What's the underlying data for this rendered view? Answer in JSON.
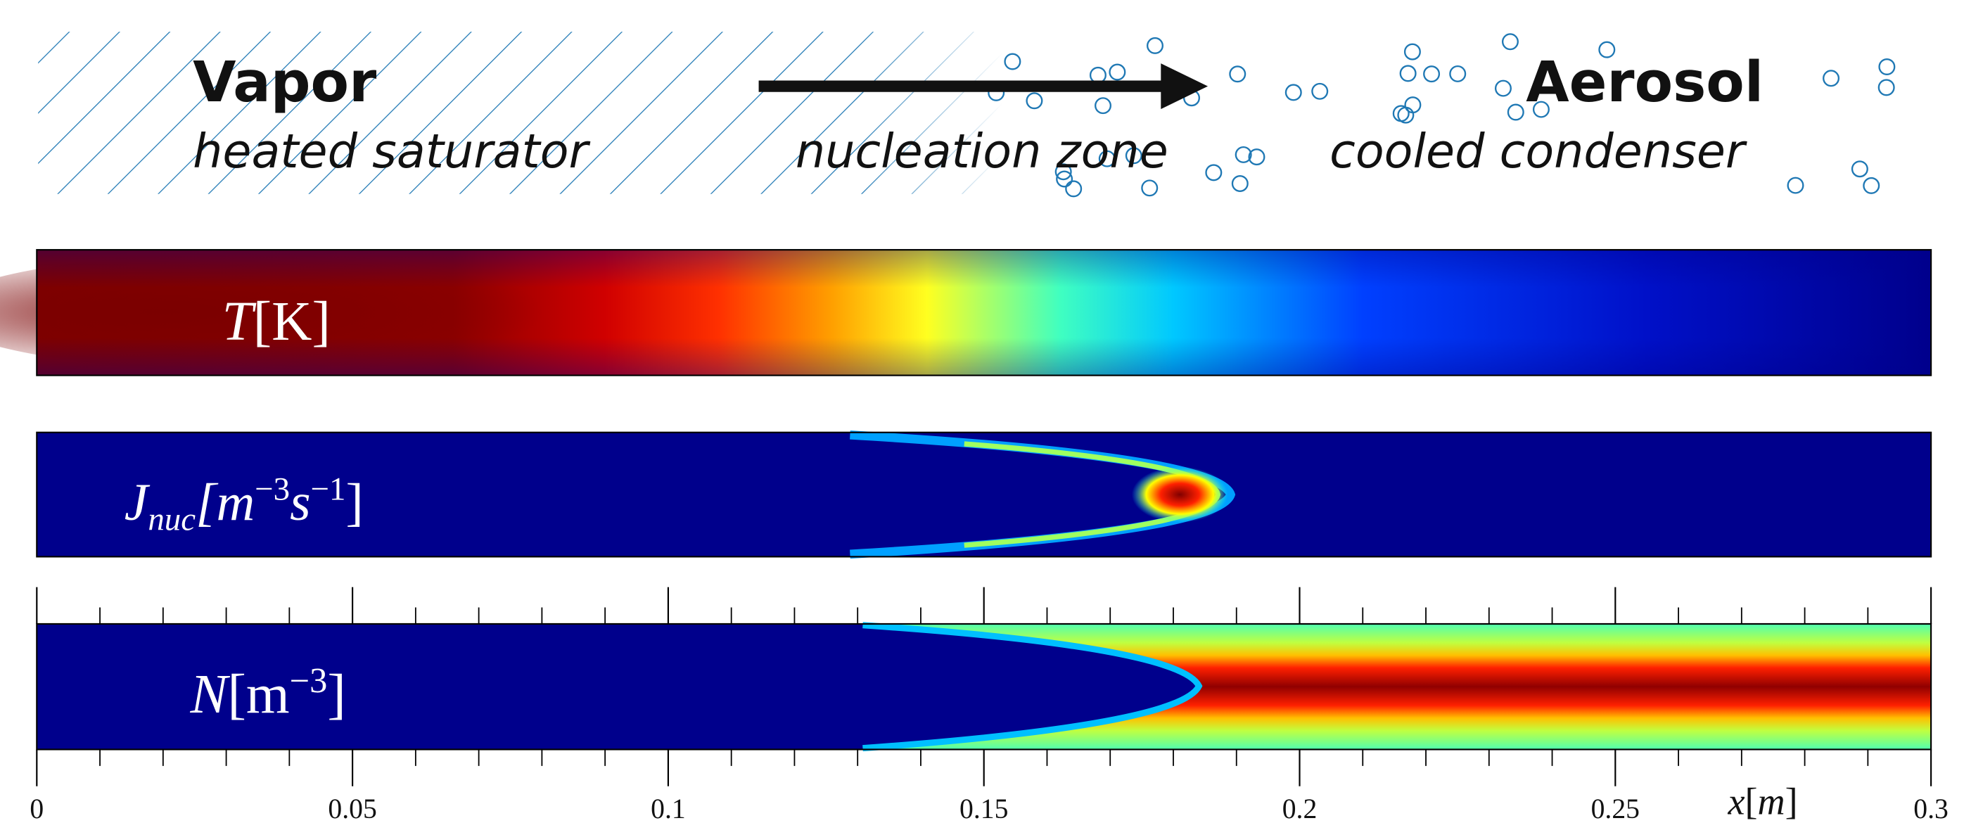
{
  "header": {
    "left_title": "Vapor",
    "left_subtitle": "heated saturator",
    "middle": "nucleation zone",
    "right_title": "Aerosol",
    "right_subtitle": "cooled condenser"
  },
  "panels": [
    {
      "parts": [
        "T",
        "[K]"
      ]
    },
    {
      "parts": [
        "J",
        "nuc",
        "[m",
        "−3",
        "s",
        "−1",
        "]"
      ]
    },
    {
      "parts": [
        "N",
        "[m",
        "−3",
        "]"
      ]
    }
  ],
  "axis": {
    "xlim": [
      0,
      0.3
    ],
    "xticks": [
      0,
      0.05,
      0.1,
      0.15,
      0.2,
      0.25,
      0.3
    ],
    "xminorticks": [
      0.01,
      0.02,
      0.03,
      0.04,
      0.06,
      0.07,
      0.08,
      0.09,
      0.11,
      0.12,
      0.13,
      0.14,
      0.16,
      0.17,
      0.18,
      0.19,
      0.21,
      0.22,
      0.23,
      0.24,
      0.26,
      0.27,
      0.28,
      0.29
    ],
    "xlabel": [
      "x",
      "[",
      "m",
      "]"
    ]
  }
}
